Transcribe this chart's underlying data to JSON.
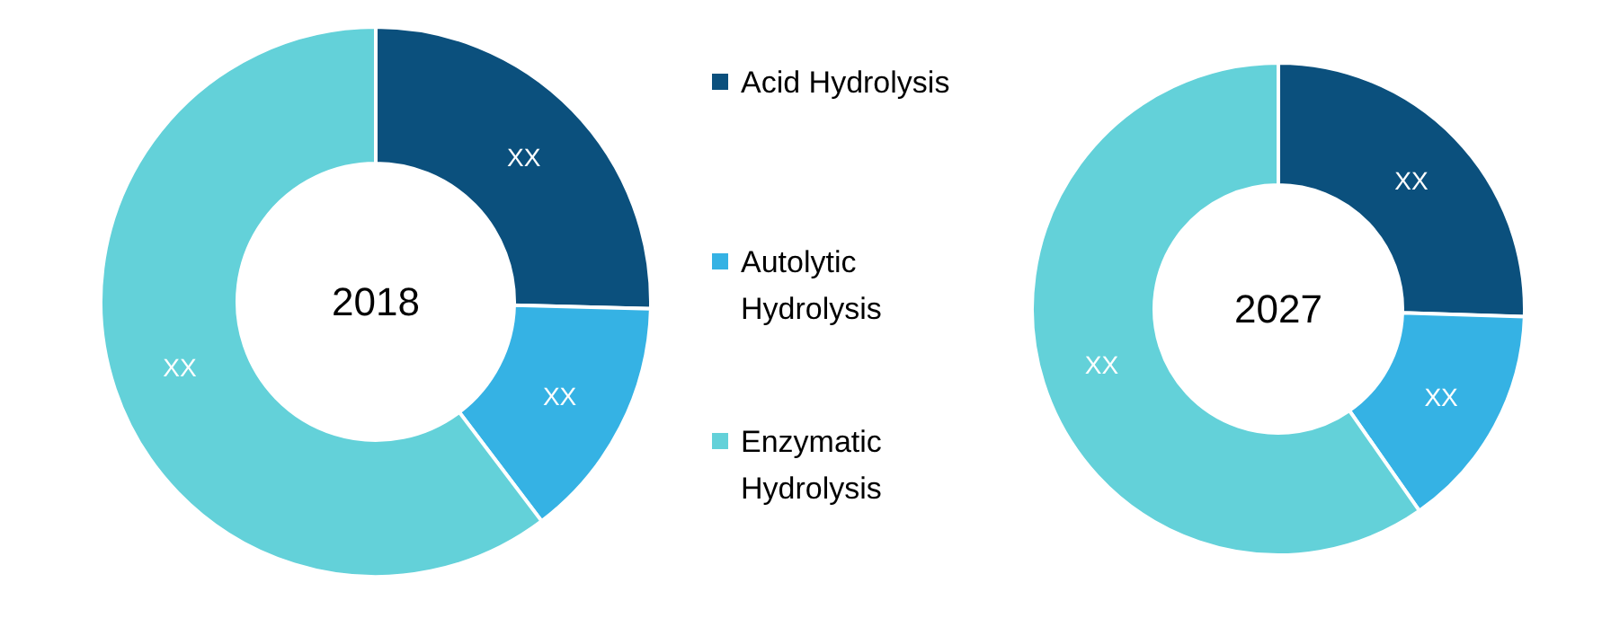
{
  "chart_data": [
    {
      "type": "donut",
      "title": "2018",
      "categories": [
        "Acid Hydrolysis",
        "Autolytic Hydrolysis",
        "Enzymatic Hydrolysis"
      ],
      "values": [
        25.4,
        14.3,
        60.3
      ],
      "value_labels": [
        "XX",
        "XX",
        "XX"
      ],
      "colors": [
        "#0b507d",
        "#35b2e4",
        "#63d1d9"
      ],
      "legend": "right"
    },
    {
      "type": "donut",
      "title": "2027",
      "categories": [
        null,
        null,
        null
      ],
      "values": [
        25.5,
        14.8,
        59.7
      ],
      "value_labels": [
        "XX",
        "XX",
        "XX"
      ],
      "colors": [
        "#0b507d",
        "#35b2e4",
        "#63d1d9"
      ]
    }
  ]
}
